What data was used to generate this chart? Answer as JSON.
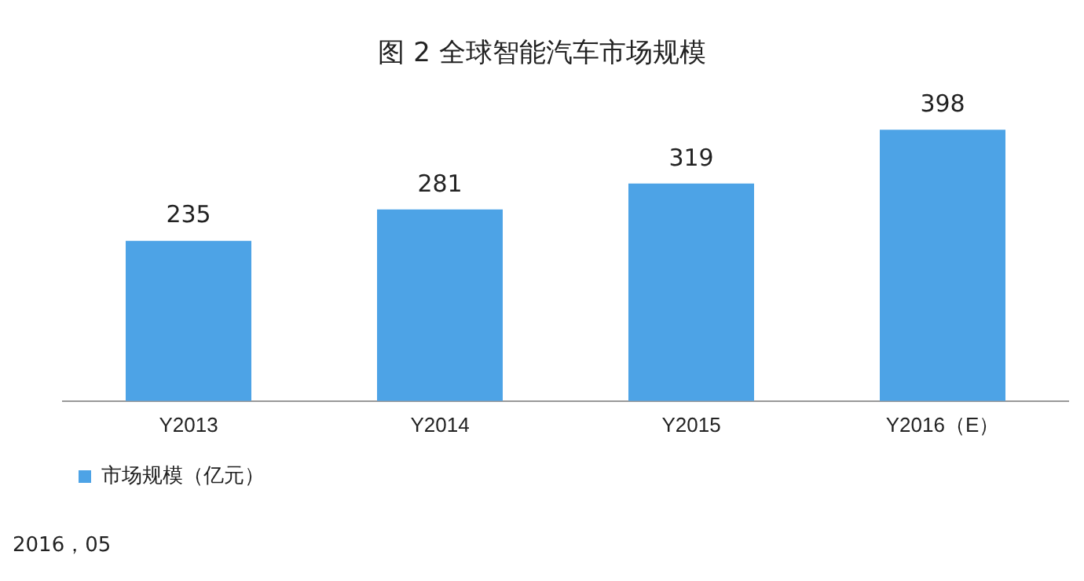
{
  "chart_data": {
    "type": "bar",
    "title": "图 2  全球智能汽车市场规模",
    "categories": [
      "Y2013",
      "Y2014",
      "Y2015",
      "Y2016（E）"
    ],
    "series": [
      {
        "name": "市场规模（亿元）",
        "color": "#4da3e6",
        "values": [
          235,
          281,
          319,
          398
        ]
      }
    ],
    "data_labels": true,
    "legend": "bottom left",
    "grid": false,
    "annotations": [
      "2016，05"
    ]
  }
}
